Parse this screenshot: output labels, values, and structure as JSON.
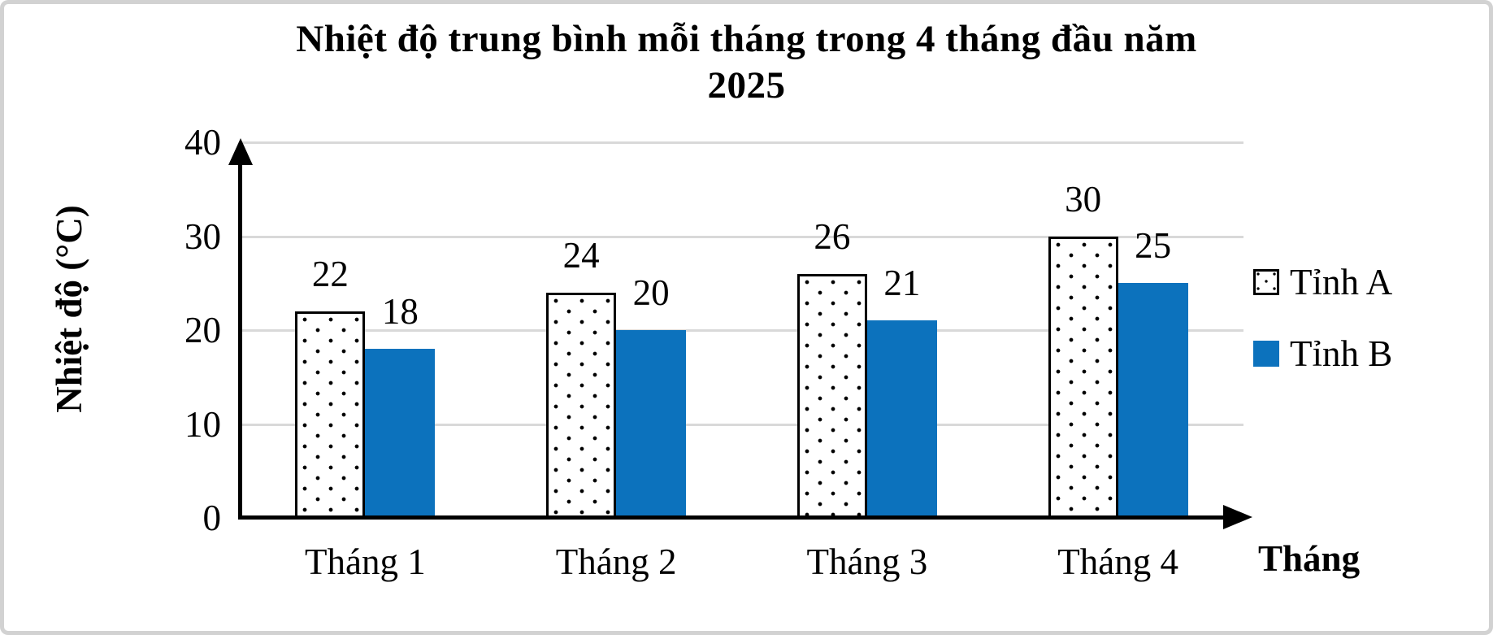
{
  "title": {
    "line1": "Nhiệt độ trung bình mỗi tháng trong 4 tháng đầu năm",
    "line2": "2025"
  },
  "axes": {
    "y_title": "Nhiệt độ (°C)",
    "x_title": "Tháng"
  },
  "legend": {
    "items": [
      {
        "label": "Tỉnh A",
        "swatch": "dotted-white-square"
      },
      {
        "label": "Tỉnh B",
        "swatch": "solid-blue-square"
      }
    ]
  },
  "colors": {
    "series_b_blue": "#0c72bd",
    "gridline_gray": "#d9d9d9",
    "axis_black": "#000000",
    "frame_gray": "#d2d2d2"
  },
  "chart_data": {
    "type": "bar",
    "title": "Nhiệt độ trung bình mỗi tháng trong 4 tháng đầu năm 2025",
    "categories": [
      "Tháng 1",
      "Tháng 2",
      "Tháng 3",
      "Tháng 4"
    ],
    "series": [
      {
        "name": "Tỉnh A",
        "values": [
          22,
          24,
          26,
          30
        ],
        "style": "dotted-pattern-white"
      },
      {
        "name": "Tỉnh B",
        "values": [
          18,
          20,
          21,
          25
        ],
        "style": "solid-blue",
        "color": "#0c72bd"
      }
    ],
    "xlabel": "Tháng",
    "ylabel": "Nhiệt độ (°C)",
    "ylim": [
      0,
      40
    ],
    "yticks": [
      0,
      10,
      20,
      30,
      40
    ],
    "grid": "horizontal",
    "data_labels": true,
    "legend_position": "right"
  }
}
